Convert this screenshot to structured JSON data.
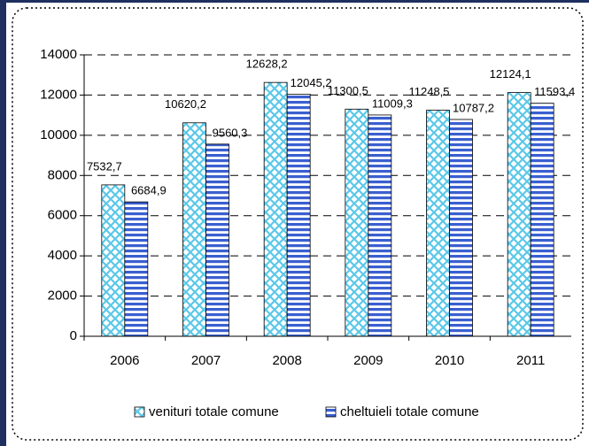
{
  "chart_data": {
    "type": "bar",
    "categories": [
      "2006",
      "2007",
      "2008",
      "2009",
      "2010",
      "2011"
    ],
    "series": [
      {
        "name": "venituri totale comune",
        "color": "#5bc8e8",
        "values": [
          7532.7,
          10620.2,
          12628.2,
          11300.5,
          11248.5,
          12124.1
        ],
        "value_labels": [
          "7532,7",
          "10620,2",
          "12628,2",
          "11300,5",
          "11248,5",
          "12124,1"
        ]
      },
      {
        "name": "cheltuieli totale comune",
        "color": "#3a5fd0",
        "values": [
          6684.9,
          9560.3,
          12045.2,
          11009.3,
          10787.2,
          11593.4
        ],
        "value_labels": [
          "6684,9",
          "9560,3",
          "12045,2",
          "11009,3",
          "10787,2",
          "11593,4"
        ]
      }
    ],
    "ylim": [
      0,
      14000
    ],
    "yticks": [
      0,
      2000,
      4000,
      6000,
      8000,
      10000,
      12000,
      14000
    ],
    "grid": true,
    "legend": "bottom"
  }
}
